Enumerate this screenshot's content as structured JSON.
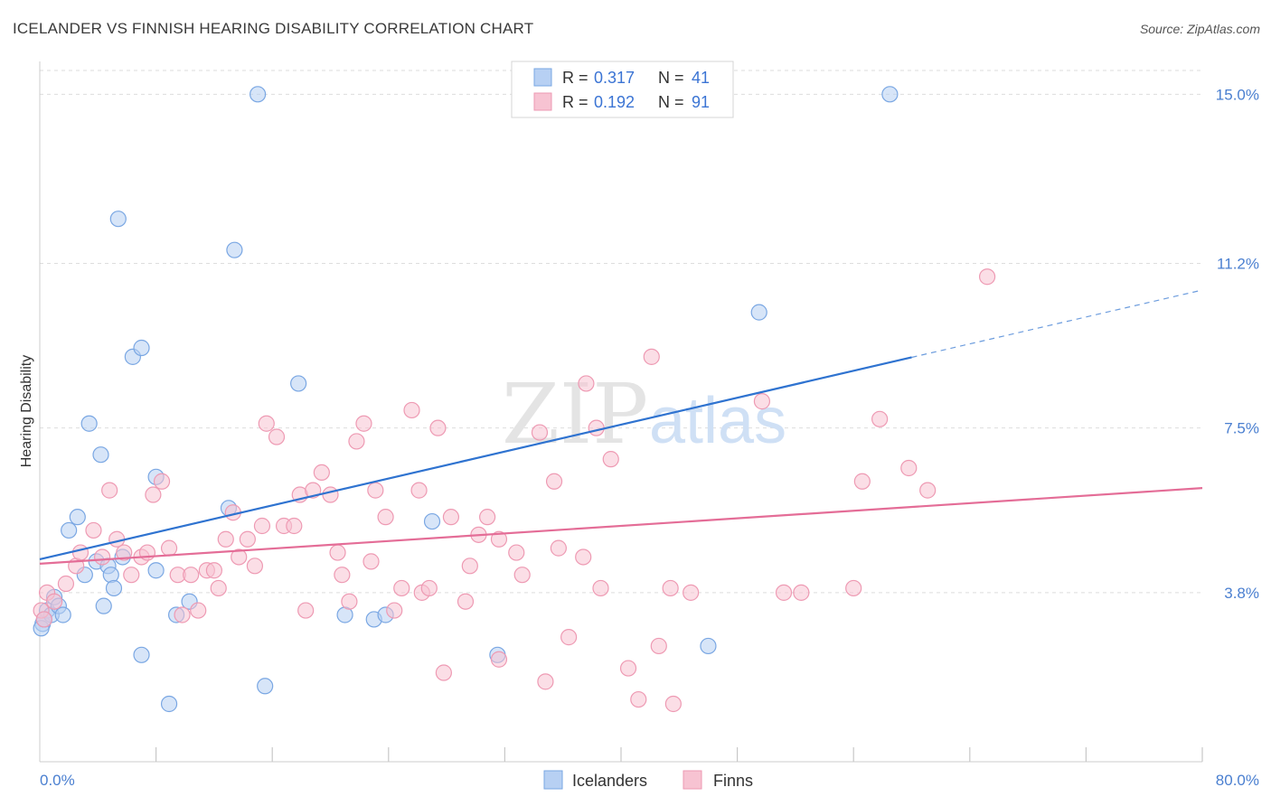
{
  "title": "ICELANDER VS FINNISH HEARING DISABILITY CORRELATION CHART",
  "source": "Source: ZipAtlas.com",
  "watermark": {
    "zip": "ZIP",
    "atlas": "atlas"
  },
  "legend": {
    "r_label": "R =",
    "n_label": "N =",
    "rows": [
      {
        "r": "0.317",
        "n": "41"
      },
      {
        "r": "0.192",
        "n": "91"
      }
    ]
  },
  "bottom_legend": [
    "Icelanders",
    "Finns"
  ],
  "colors": {
    "blue_fill": "#b7d0f3",
    "blue_stroke": "#7aa7e3",
    "blue_line": "#2f73d0",
    "pink_fill": "#f7c3d2",
    "pink_stroke": "#ee9ab3",
    "pink_line": "#e46d97",
    "tick_text": "#4a7fd0",
    "grid": "#dddddd"
  },
  "chart_data": {
    "type": "scatter",
    "title": "ICELANDER VS FINNISH HEARING DISABILITY CORRELATION CHART",
    "xlabel": "",
    "ylabel": "Hearing Disability",
    "xlim": [
      0,
      80
    ],
    "ylim": [
      0,
      15.9
    ],
    "x_tick_labels": [
      {
        "value": 0,
        "label": "0.0%"
      },
      {
        "value": 80,
        "label": "80.0%"
      }
    ],
    "y_tick_labels": [
      {
        "value": 3.8,
        "label": "3.8%"
      },
      {
        "value": 7.5,
        "label": "7.5%"
      },
      {
        "value": 11.2,
        "label": "11.2%"
      },
      {
        "value": 15.0,
        "label": "15.0%"
      }
    ],
    "x_minor_ticks": [
      8,
      16,
      24,
      32,
      40,
      48,
      56,
      64,
      72
    ],
    "grid": "horizontal dashed",
    "legend_position": "top-center",
    "series": [
      {
        "name": "Icelanders",
        "r": 0.317,
        "n": 41,
        "trend": {
          "x0": 0,
          "y0": 4.55,
          "x1": 80,
          "y1": 10.6,
          "solid_until": 60
        },
        "points": [
          [
            0.2,
            3.1
          ],
          [
            0.5,
            3.4
          ],
          [
            0.8,
            3.3
          ],
          [
            1.0,
            3.7
          ],
          [
            1.3,
            3.5
          ],
          [
            1.6,
            3.3
          ],
          [
            2.0,
            5.2
          ],
          [
            2.6,
            5.5
          ],
          [
            3.1,
            4.2
          ],
          [
            3.4,
            7.6
          ],
          [
            3.9,
            4.5
          ],
          [
            4.2,
            6.9
          ],
          [
            4.4,
            3.5
          ],
          [
            4.7,
            4.4
          ],
          [
            4.9,
            4.2
          ],
          [
            5.1,
            3.9
          ],
          [
            5.4,
            12.2
          ],
          [
            5.7,
            4.6
          ],
          [
            6.4,
            9.1
          ],
          [
            7.0,
            9.3
          ],
          [
            7.0,
            2.4
          ],
          [
            8.0,
            6.4
          ],
          [
            8.0,
            4.3
          ],
          [
            8.9,
            1.3
          ],
          [
            9.4,
            3.3
          ],
          [
            10.3,
            3.6
          ],
          [
            13.0,
            5.7
          ],
          [
            13.4,
            11.5
          ],
          [
            15.0,
            15.0
          ],
          [
            15.5,
            1.7
          ],
          [
            17.8,
            8.5
          ],
          [
            21.0,
            3.3
          ],
          [
            23.0,
            3.2
          ],
          [
            23.8,
            3.3
          ],
          [
            27.0,
            5.4
          ],
          [
            31.5,
            2.4
          ],
          [
            46.0,
            2.6
          ],
          [
            49.5,
            10.1
          ],
          [
            58.5,
            15.0
          ],
          [
            0.1,
            3.0
          ],
          [
            0.3,
            3.2
          ]
        ]
      },
      {
        "name": "Finns",
        "r": 0.192,
        "n": 91,
        "trend": {
          "x0": 0,
          "y0": 4.45,
          "x1": 80,
          "y1": 6.15
        },
        "points": [
          [
            0.1,
            3.4
          ],
          [
            0.3,
            3.2
          ],
          [
            0.5,
            3.8
          ],
          [
            1.0,
            3.6
          ],
          [
            1.8,
            4.0
          ],
          [
            2.5,
            4.4
          ],
          [
            2.8,
            4.7
          ],
          [
            3.7,
            5.2
          ],
          [
            4.3,
            4.6
          ],
          [
            4.8,
            6.1
          ],
          [
            5.3,
            5.0
          ],
          [
            5.8,
            4.7
          ],
          [
            6.3,
            4.2
          ],
          [
            7.0,
            4.6
          ],
          [
            7.4,
            4.7
          ],
          [
            7.8,
            6.0
          ],
          [
            8.4,
            6.3
          ],
          [
            8.9,
            4.8
          ],
          [
            9.5,
            4.2
          ],
          [
            9.8,
            3.3
          ],
          [
            10.4,
            4.2
          ],
          [
            10.9,
            3.4
          ],
          [
            11.5,
            4.3
          ],
          [
            12.0,
            4.3
          ],
          [
            12.3,
            3.9
          ],
          [
            12.8,
            5.0
          ],
          [
            13.3,
            5.6
          ],
          [
            13.7,
            4.6
          ],
          [
            14.3,
            5.0
          ],
          [
            14.8,
            4.4
          ],
          [
            15.3,
            5.3
          ],
          [
            15.6,
            7.6
          ],
          [
            16.3,
            7.3
          ],
          [
            16.8,
            5.3
          ],
          [
            17.5,
            5.3
          ],
          [
            17.9,
            6.0
          ],
          [
            18.3,
            3.4
          ],
          [
            18.8,
            6.1
          ],
          [
            19.4,
            6.5
          ],
          [
            20.0,
            6.0
          ],
          [
            20.5,
            4.7
          ],
          [
            20.8,
            4.2
          ],
          [
            21.3,
            3.6
          ],
          [
            21.8,
            7.2
          ],
          [
            22.3,
            7.6
          ],
          [
            22.8,
            4.5
          ],
          [
            23.1,
            6.1
          ],
          [
            23.8,
            5.5
          ],
          [
            24.4,
            3.4
          ],
          [
            24.9,
            3.9
          ],
          [
            25.6,
            7.9
          ],
          [
            26.1,
            6.1
          ],
          [
            26.3,
            3.8
          ],
          [
            26.8,
            3.9
          ],
          [
            27.4,
            7.5
          ],
          [
            27.8,
            2.0
          ],
          [
            28.3,
            5.5
          ],
          [
            29.3,
            3.6
          ],
          [
            29.6,
            4.4
          ],
          [
            30.2,
            5.1
          ],
          [
            30.8,
            5.5
          ],
          [
            31.6,
            5.0
          ],
          [
            31.6,
            2.3
          ],
          [
            32.8,
            4.7
          ],
          [
            33.2,
            4.2
          ],
          [
            34.4,
            7.4
          ],
          [
            34.8,
            1.8
          ],
          [
            35.4,
            6.3
          ],
          [
            35.7,
            4.8
          ],
          [
            36.4,
            2.8
          ],
          [
            37.4,
            4.6
          ],
          [
            37.6,
            8.5
          ],
          [
            38.3,
            7.5
          ],
          [
            38.6,
            3.9
          ],
          [
            39.3,
            6.8
          ],
          [
            40.5,
            2.1
          ],
          [
            41.2,
            1.4
          ],
          [
            42.1,
            9.1
          ],
          [
            42.6,
            2.6
          ],
          [
            43.4,
            3.9
          ],
          [
            43.6,
            1.3
          ],
          [
            44.8,
            3.8
          ],
          [
            49.7,
            8.1
          ],
          [
            51.2,
            3.8
          ],
          [
            52.4,
            3.8
          ],
          [
            56.0,
            3.9
          ],
          [
            56.6,
            6.3
          ],
          [
            57.8,
            7.7
          ],
          [
            59.8,
            6.6
          ],
          [
            61.1,
            6.1
          ],
          [
            65.2,
            10.9
          ]
        ]
      }
    ]
  }
}
